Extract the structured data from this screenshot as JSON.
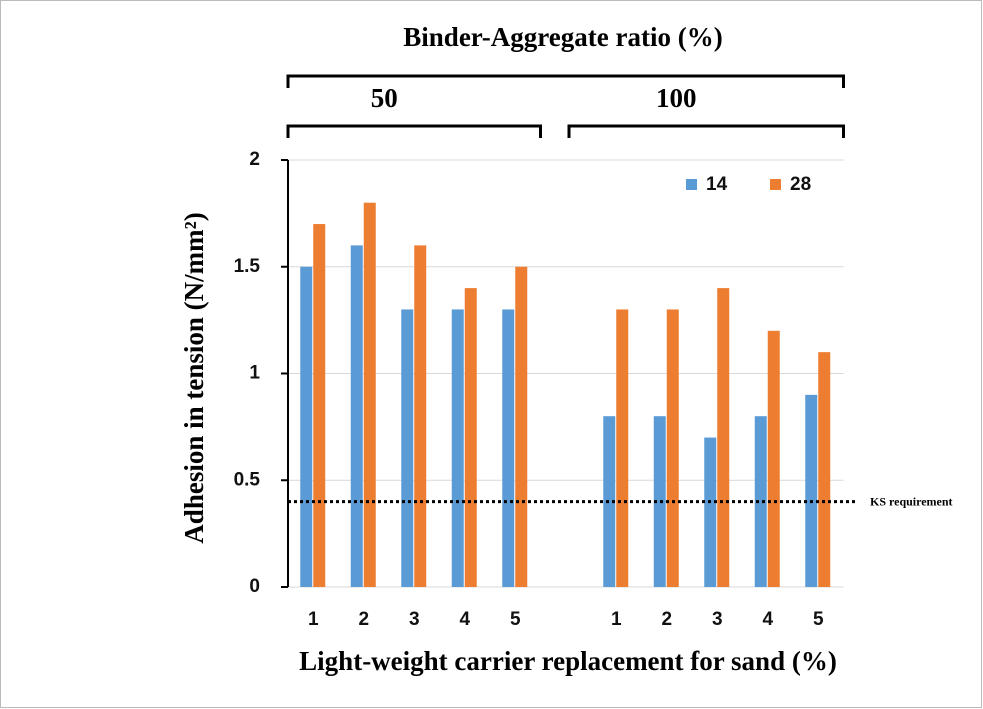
{
  "chart_data": {
    "type": "bar",
    "title": "Binder-Aggregate ratio (%)",
    "groups": [
      "50",
      "100"
    ],
    "x_label": "Light-weight carrier replacement for sand (%)",
    "y_label": "Adhesion in tension (N/mm²)",
    "categories": [
      "1",
      "2",
      "3",
      "4",
      "5",
      null,
      "1",
      "2",
      "3",
      "4",
      "5"
    ],
    "series": [
      {
        "name": "14",
        "color": "#5b9bd5",
        "values": [
          1.5,
          1.6,
          1.3,
          1.3,
          1.3,
          null,
          0.8,
          0.8,
          0.7,
          0.8,
          0.9
        ]
      },
      {
        "name": "28",
        "color": "#ed7d31",
        "values": [
          1.7,
          1.8,
          1.6,
          1.4,
          1.5,
          null,
          1.3,
          1.3,
          1.4,
          1.2,
          1.1
        ]
      }
    ],
    "ylim": [
      0,
      2
    ],
    "yticks": [
      0,
      0.5,
      1,
      1.5,
      2
    ],
    "grid": true,
    "reference_line": {
      "value": 0.4,
      "label": "KS requirement"
    },
    "legend": "top-right"
  }
}
